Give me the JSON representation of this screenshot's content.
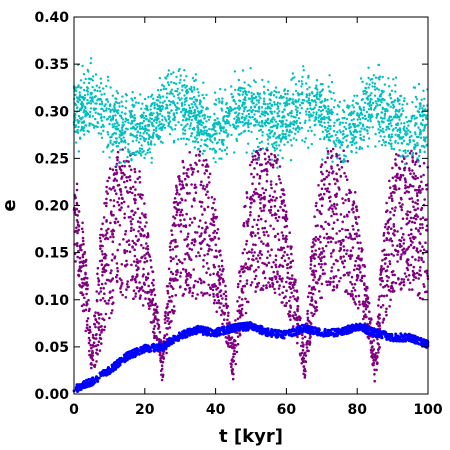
{
  "chart_data": {
    "type": "scatter",
    "xlabel": "t [kyr]",
    "ylabel": "e",
    "xlim": [
      0,
      100
    ],
    "ylim": [
      0.0,
      0.4
    ],
    "x_ticks": [
      "0",
      "20",
      "40",
      "60",
      "80",
      "100"
    ],
    "x_tick_values": [
      0,
      20,
      40,
      60,
      80,
      100
    ],
    "y_ticks": [
      "0.00",
      "0.05",
      "0.10",
      "0.15",
      "0.20",
      "0.25",
      "0.30",
      "0.35",
      "0.40"
    ],
    "y_tick_values": [
      0.0,
      0.05,
      0.1,
      0.15,
      0.2,
      0.25,
      0.3,
      0.35,
      0.4
    ],
    "grid": false,
    "series": [
      {
        "color": "#800080",
        "description_x": [
          0,
          2,
          4,
          5,
          6,
          8,
          10,
          12,
          14,
          16,
          18,
          20,
          22,
          24,
          25,
          26,
          28,
          30,
          32,
          34,
          36,
          38,
          40,
          42,
          44,
          45,
          46,
          48,
          50,
          52,
          54,
          56,
          58,
          60,
          62,
          64,
          65,
          66,
          68,
          70,
          72,
          74,
          76,
          78,
          80,
          82,
          84,
          85,
          86,
          88,
          90,
          92,
          94,
          96,
          98,
          100
        ],
        "upper": [
          0.25,
          0.2,
          0.12,
          0.04,
          0.1,
          0.2,
          0.24,
          0.26,
          0.26,
          0.26,
          0.25,
          0.2,
          0.14,
          0.08,
          0.04,
          0.1,
          0.2,
          0.25,
          0.26,
          0.26,
          0.26,
          0.25,
          0.2,
          0.14,
          0.08,
          0.05,
          0.1,
          0.2,
          0.25,
          0.26,
          0.26,
          0.26,
          0.25,
          0.2,
          0.14,
          0.08,
          0.05,
          0.1,
          0.2,
          0.25,
          0.26,
          0.26,
          0.26,
          0.25,
          0.2,
          0.14,
          0.08,
          0.05,
          0.1,
          0.2,
          0.25,
          0.26,
          0.26,
          0.26,
          0.25,
          0.25
        ],
        "lower": [
          0.15,
          0.1,
          0.05,
          0.02,
          0.03,
          0.05,
          0.08,
          0.1,
          0.1,
          0.1,
          0.1,
          0.09,
          0.07,
          0.04,
          0.01,
          0.04,
          0.08,
          0.1,
          0.11,
          0.1,
          0.1,
          0.1,
          0.09,
          0.07,
          0.04,
          0.01,
          0.04,
          0.08,
          0.1,
          0.11,
          0.11,
          0.11,
          0.1,
          0.09,
          0.07,
          0.04,
          0.01,
          0.04,
          0.08,
          0.1,
          0.11,
          0.11,
          0.11,
          0.1,
          0.09,
          0.07,
          0.04,
          0.01,
          0.04,
          0.08,
          0.1,
          0.11,
          0.11,
          0.11,
          0.1,
          0.1
        ]
      },
      {
        "color": "#00BFBF",
        "center_x": [
          0,
          5,
          10,
          15,
          20,
          25,
          30,
          35,
          40,
          45,
          50,
          55,
          60,
          65,
          70,
          75,
          80,
          85,
          90,
          95,
          100
        ],
        "center_y": [
          0.3,
          0.31,
          0.29,
          0.28,
          0.28,
          0.3,
          0.31,
          0.29,
          0.28,
          0.3,
          0.3,
          0.29,
          0.29,
          0.31,
          0.3,
          0.28,
          0.29,
          0.31,
          0.29,
          0.28,
          0.29
        ],
        "spread": 0.03
      },
      {
        "color": "#0000FF",
        "x": [
          0,
          5,
          10,
          15,
          20,
          25,
          30,
          35,
          40,
          45,
          50,
          55,
          60,
          65,
          70,
          75,
          80,
          85,
          90,
          95,
          100
        ],
        "y": [
          0.005,
          0.013,
          0.025,
          0.04,
          0.048,
          0.05,
          0.062,
          0.068,
          0.065,
          0.07,
          0.072,
          0.065,
          0.063,
          0.07,
          0.065,
          0.065,
          0.072,
          0.065,
          0.06,
          0.06,
          0.052
        ]
      }
    ]
  }
}
